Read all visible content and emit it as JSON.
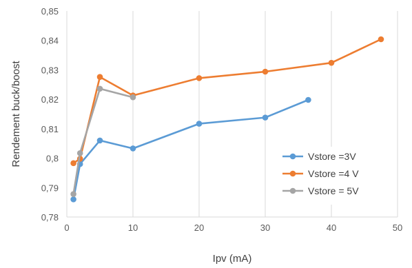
{
  "chart_data": {
    "type": "line",
    "title": "",
    "xlabel": "Ipv (mA)",
    "ylabel": "Rendement buck/boost",
    "xlim": [
      0,
      50
    ],
    "ylim": [
      0.78,
      0.85
    ],
    "xticks": [
      0,
      10,
      20,
      30,
      40,
      50
    ],
    "xtick_labels": [
      "0",
      "10",
      "20",
      "30",
      "40",
      "50"
    ],
    "yticks": [
      0.78,
      0.79,
      0.8,
      0.81,
      0.82,
      0.83,
      0.84,
      0.85
    ],
    "ytick_labels": [
      "0,78",
      "0,79",
      "0,8",
      "0,81",
      "0,82",
      "0,83",
      "0,84",
      "0,85"
    ],
    "grid": "vertical",
    "legend_position": "bottom-right",
    "series": [
      {
        "name": "Vstore =3V",
        "color": "#5b9bd5",
        "points": [
          [
            1,
            0.786
          ],
          [
            2,
            0.798
          ],
          [
            5,
            0.806
          ],
          [
            10,
            0.8033
          ],
          [
            20,
            0.8117
          ],
          [
            30,
            0.8138
          ],
          [
            36.5,
            0.8198
          ]
        ]
      },
      {
        "name": "Vstore =4 V",
        "color": "#ed7d31",
        "points": [
          [
            1,
            0.7983
          ],
          [
            2,
            0.7998
          ],
          [
            5,
            0.8276
          ],
          [
            10,
            0.8213
          ],
          [
            20,
            0.8272
          ],
          [
            30,
            0.8294
          ],
          [
            40,
            0.8324
          ],
          [
            47.5,
            0.8404
          ]
        ]
      },
      {
        "name": "Vstore = 5V",
        "color": "#a5a5a5",
        "points": [
          [
            1,
            0.7878
          ],
          [
            2,
            0.8017
          ],
          [
            5,
            0.8236
          ],
          [
            10,
            0.8207
          ]
        ]
      }
    ]
  }
}
